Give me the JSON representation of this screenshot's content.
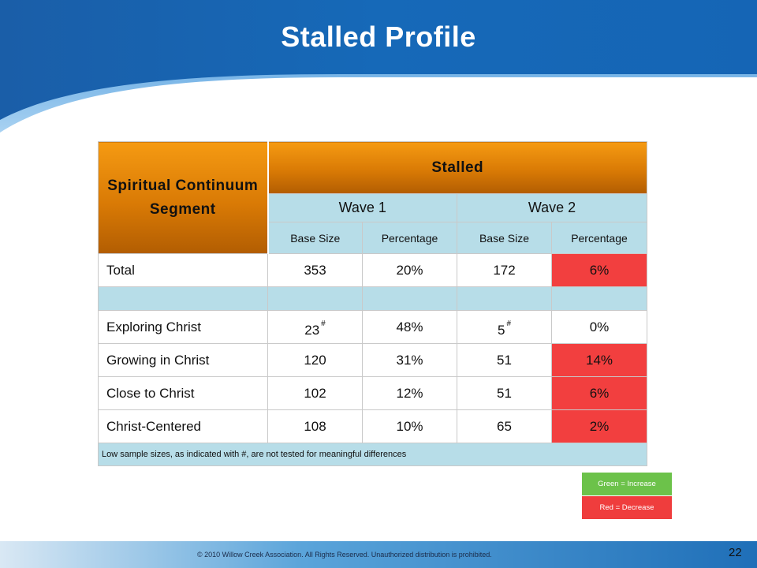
{
  "header": {
    "title": "Stalled Profile"
  },
  "table": {
    "segment_header": "Spiritual Continuum Segment",
    "stalled_header": "Stalled",
    "waves": [
      "Wave 1",
      "Wave 2"
    ],
    "subheaders": [
      "Base Size",
      "Percentage",
      "Base Size",
      "Percentage"
    ],
    "rows": [
      {
        "label": "Total",
        "w1_base": "353",
        "w1_pct": "20%",
        "w2_base": "172",
        "w2_pct": "6%",
        "w2_pct_status": "decrease"
      },
      {
        "label": "Exploring Christ",
        "w1_base": "23",
        "w1_base_flag": "#",
        "w1_pct": "48%",
        "w2_base": "5",
        "w2_base_flag": "#",
        "w2_pct": "0%",
        "w2_pct_status": "none"
      },
      {
        "label": "Growing in Christ",
        "w1_base": "120",
        "w1_pct": "31%",
        "w2_base": "51",
        "w2_pct": "14%",
        "w2_pct_status": "decrease"
      },
      {
        "label": "Close to Christ",
        "w1_base": "102",
        "w1_pct": "12%",
        "w2_base": "51",
        "w2_pct": "6%",
        "w2_pct_status": "decrease"
      },
      {
        "label": "Christ-Centered",
        "w1_base": "108",
        "w1_pct": "10%",
        "w2_base": "65",
        "w2_pct": "2%",
        "w2_pct_status": "decrease"
      }
    ],
    "note": "Low sample sizes, as indicated with #, are not tested for meaningful differences"
  },
  "legend": {
    "increase": "Green = Increase",
    "decrease": "Red = Decrease",
    "increase_color": "#6cc24a",
    "decrease_color": "#ef3d3d"
  },
  "footer": {
    "copyright": "© 2010 Willow Creek Association.  All Rights Reserved.  Unauthorized distribution is prohibited.",
    "page_number": "22"
  },
  "colors": {
    "header_blue": "#1565b5",
    "table_orange": "#e8860a",
    "table_light_blue": "#b7dde8",
    "decrease_red": "#f23f3f"
  }
}
